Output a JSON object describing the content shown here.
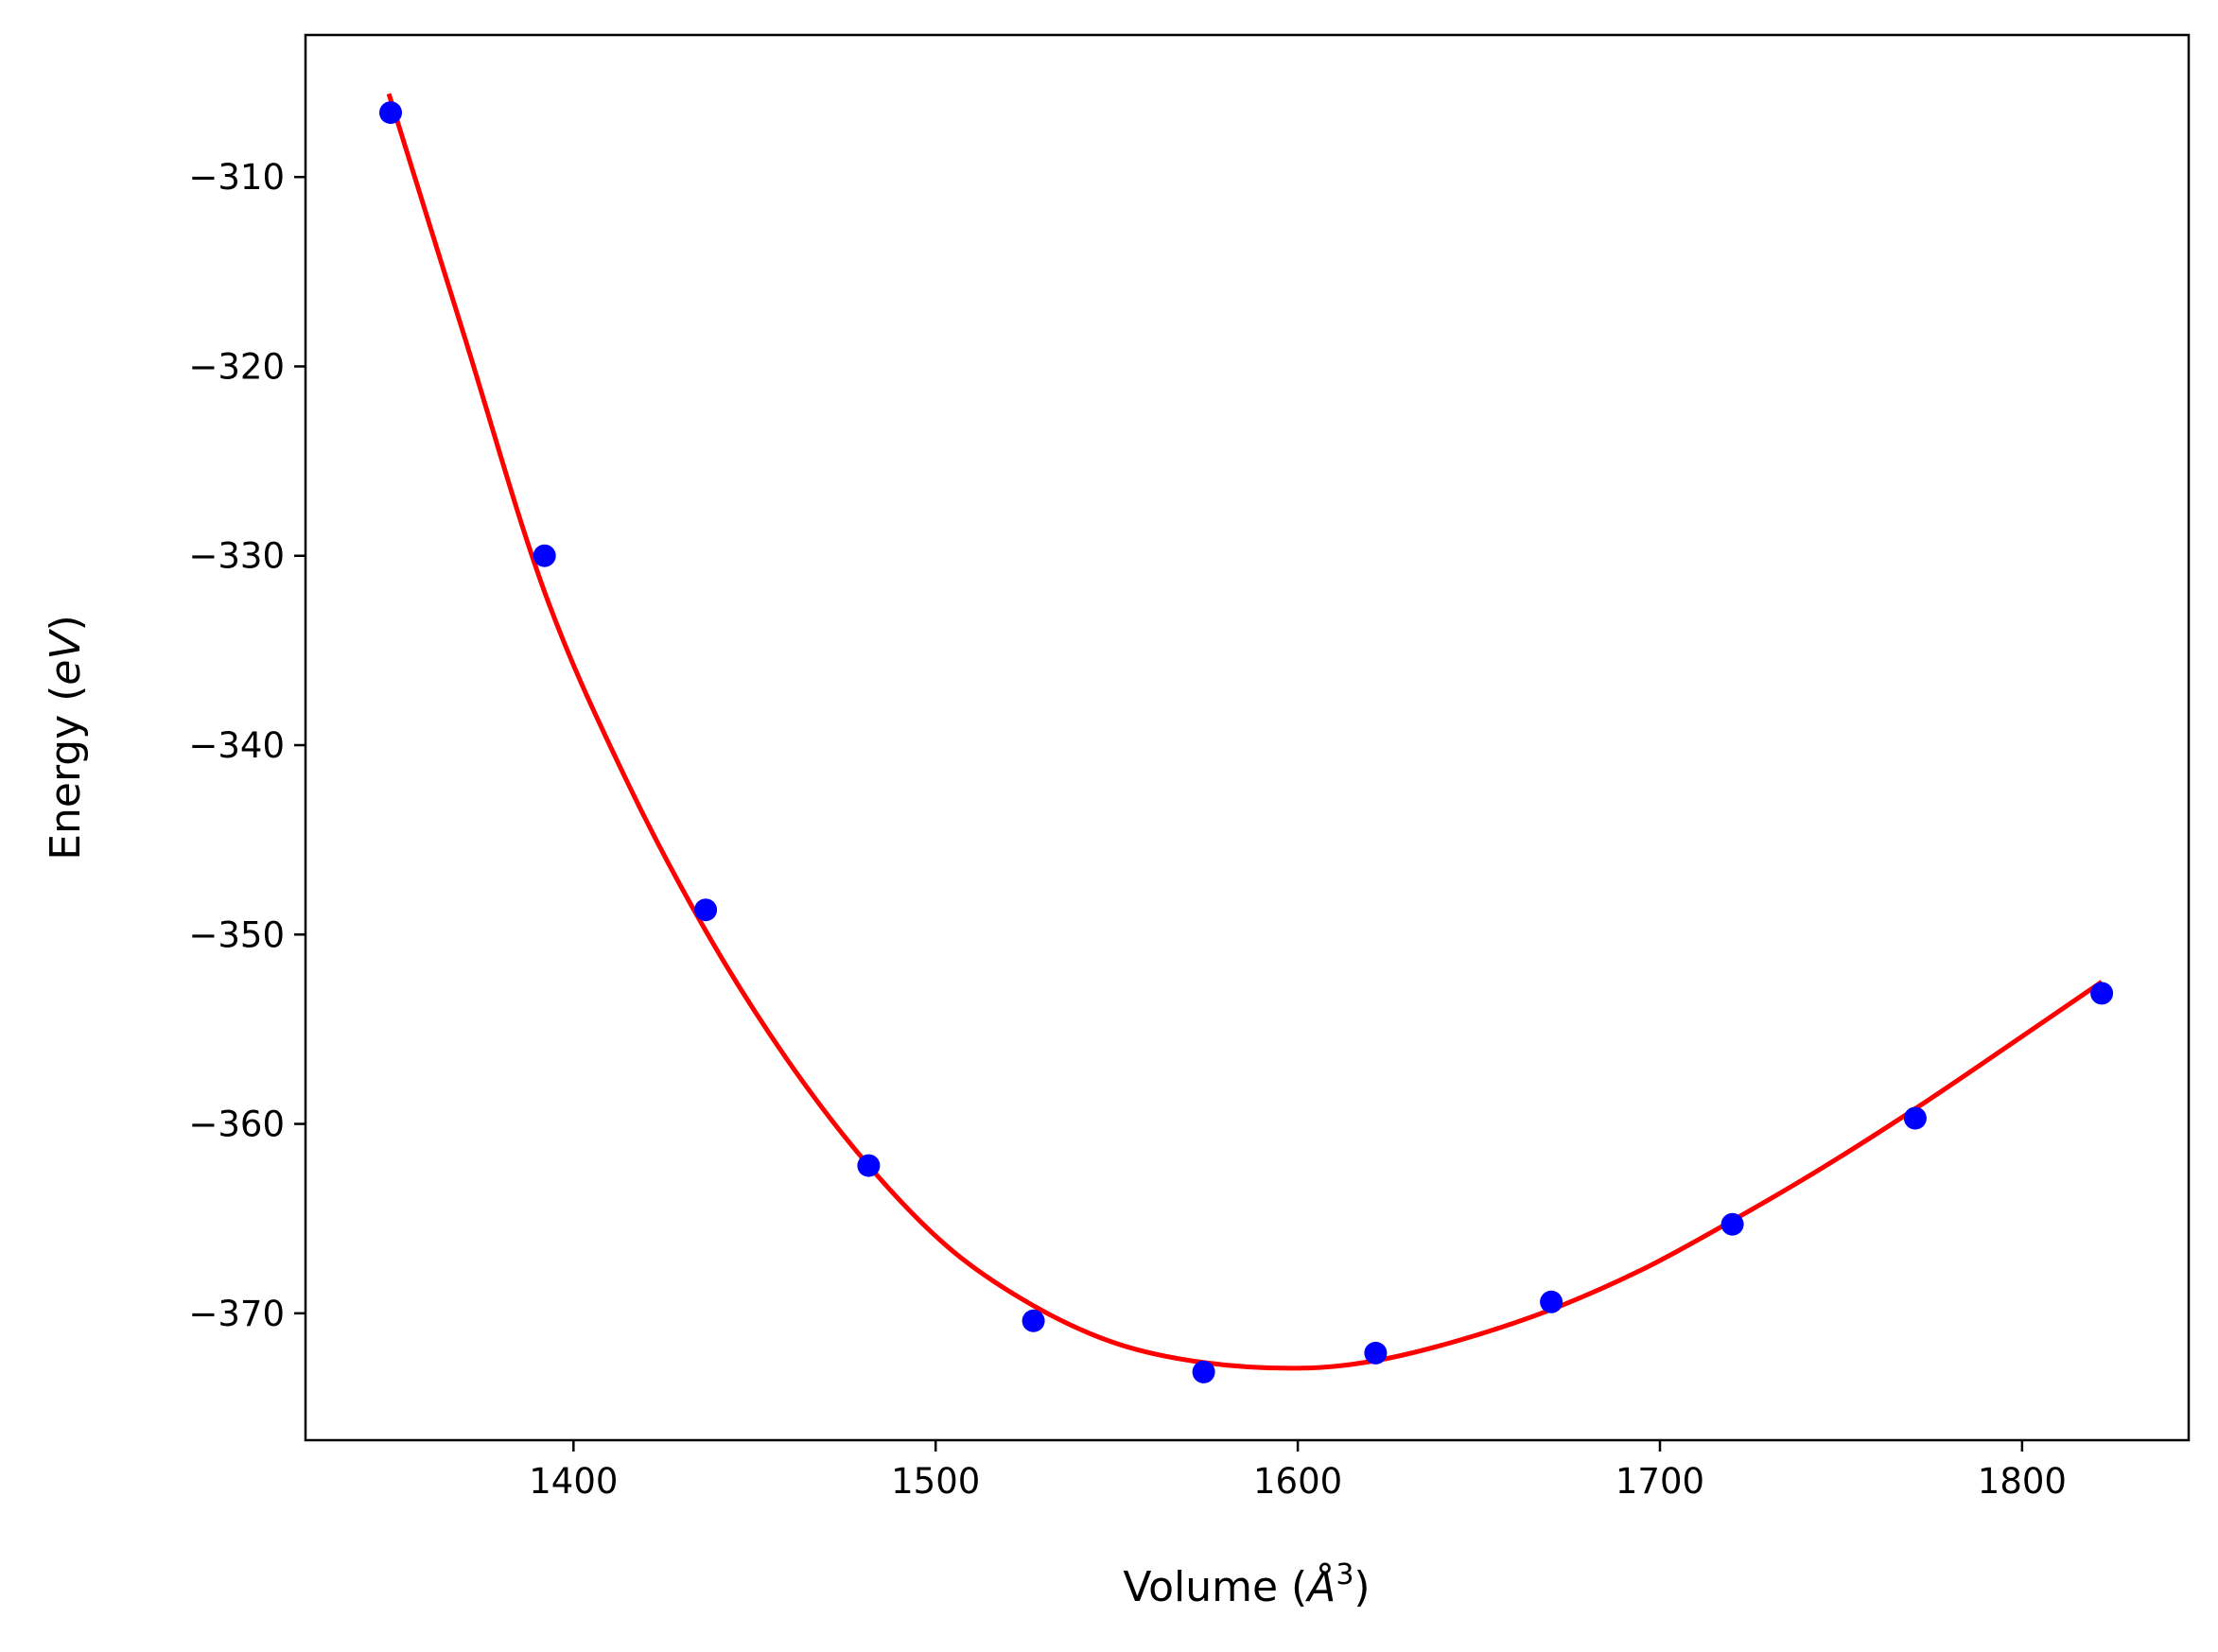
{
  "chart_data": {
    "type": "scatter",
    "title": "",
    "xlabel_main": "Volume (",
    "xlabel_unit": "Å",
    "xlabel_sup": "3",
    "xlabel_close": ")",
    "ylabel_main": "Energy (",
    "ylabel_unit": "eV",
    "ylabel_close": ")",
    "xlim": [
      1326,
      1846
    ],
    "ylim": [
      -376.7,
      -302.5
    ],
    "x_ticks": [
      1400,
      1500,
      1600,
      1700,
      1800
    ],
    "y_ticks": [
      -310,
      -320,
      -330,
      -340,
      -350,
      -360,
      -370
    ],
    "x_tick_labels": [
      "1400",
      "1500",
      "1600",
      "1700",
      "1800"
    ],
    "y_tick_labels": [
      "−310",
      "−320",
      "−330",
      "−340",
      "−350",
      "−360",
      "−370"
    ],
    "grid": false,
    "series": [
      {
        "kind": "points",
        "color": "#0000ff",
        "x": [
          1349.5,
          1392,
          1436.5,
          1481.5,
          1527,
          1574,
          1621.5,
          1670,
          1720,
          1770.5,
          1822
        ],
        "y": [
          -306.6,
          -330.0,
          -348.7,
          -362.2,
          -370.4,
          -373.1,
          -372.1,
          -369.4,
          -365.3,
          -359.7,
          -353.1
        ]
      },
      {
        "kind": "fit-curve",
        "color": "#ff0000",
        "x": [
          1349,
          1370,
          1392,
          1414,
          1436.5,
          1459,
          1481.5,
          1504,
          1527,
          1550,
          1574,
          1600,
          1621.5,
          1645,
          1670,
          1695,
          1720,
          1745,
          1770.5,
          1796,
          1822
        ],
        "y": [
          -305.6,
          -318.5,
          -331.9,
          -341.6,
          -349.8,
          -356.6,
          -362.2,
          -366.6,
          -369.6,
          -371.6,
          -372.6,
          -372.9,
          -372.5,
          -371.4,
          -369.8,
          -367.7,
          -365.1,
          -362.3,
          -359.2,
          -355.9,
          -352.5
        ]
      }
    ]
  }
}
